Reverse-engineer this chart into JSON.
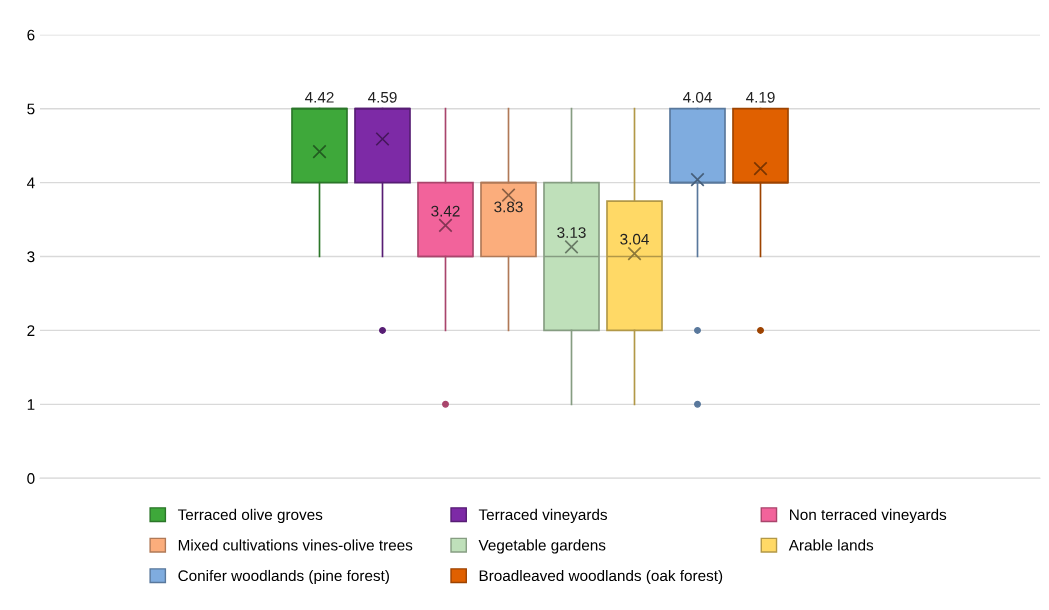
{
  "chart_data": {
    "type": "box",
    "categories": [
      null
    ],
    "ylim": [
      0,
      6
    ],
    "yticks": [
      0,
      1,
      2,
      3,
      4,
      5,
      6
    ],
    "grid": "y",
    "legend": "bottom",
    "tick_labels": "y",
    "series": [
      {
        "name": "Terraced olive groves",
        "color": "#3ea83a",
        "value_labels": [
          "4.42"
        ],
        "boxes": [
          {
            "low": 3,
            "q1": 4,
            "median": 5,
            "q3": 5,
            "high": 5,
            "mean": 4.42
          }
        ]
      },
      {
        "name": "Terraced vineyards",
        "color": "#7d2aa6",
        "value_labels": [
          "4.59"
        ],
        "boxes": [
          {
            "low": 3,
            "q1": 4,
            "median": 5,
            "q3": 5,
            "high": 5,
            "mean": 4.59,
            "outliers": [
              2
            ]
          }
        ]
      },
      {
        "name": "Non terraced vineyards",
        "color": "#f2639b",
        "value_labels": [
          "3.42"
        ],
        "boxes": [
          {
            "low": 2,
            "q1": 3,
            "median": 3,
            "q3": 4,
            "high": 5,
            "mean": 3.42,
            "outliers": [
              1
            ]
          }
        ]
      },
      {
        "name": "Mixed cultivations vines-olive trees",
        "color": "#fbad7c",
        "value_labels": [
          "3.83"
        ],
        "boxes": [
          {
            "low": 2,
            "q1": 3,
            "median": 4,
            "q3": 4,
            "high": 5,
            "mean": 3.83
          }
        ]
      },
      {
        "name": "Vegetable gardens",
        "color": "#bfe0ba",
        "value_labels": [
          "3.13"
        ],
        "boxes": [
          {
            "low": 1,
            "q1": 2,
            "median": 3,
            "q3": 4,
            "high": 5,
            "mean": 3.13
          }
        ]
      },
      {
        "name": "Arable lands",
        "color": "#ffd966",
        "value_labels": [
          "3.04"
        ],
        "boxes": [
          {
            "low": 1,
            "q1": 2,
            "median": 3,
            "q3": 3.75,
            "high": 5,
            "mean": 3.04
          }
        ]
      },
      {
        "name": "Conifer woodlands (pine forest)",
        "color": "#7facdf",
        "value_labels": [
          "4.04"
        ],
        "boxes": [
          {
            "low": 3,
            "q1": 4,
            "median": 4,
            "q3": 5,
            "high": 5,
            "mean": 4.04,
            "outliers": [
              2,
              1
            ]
          }
        ]
      },
      {
        "name": "Broadleaved woodlands (oak forest)",
        "color": "#e06000",
        "value_labels": [
          "4.19"
        ],
        "boxes": [
          {
            "low": 3,
            "q1": 4,
            "median": 4,
            "q3": 5,
            "high": 5,
            "mean": 4.19,
            "outliers": [
              2
            ]
          }
        ]
      }
    ]
  }
}
